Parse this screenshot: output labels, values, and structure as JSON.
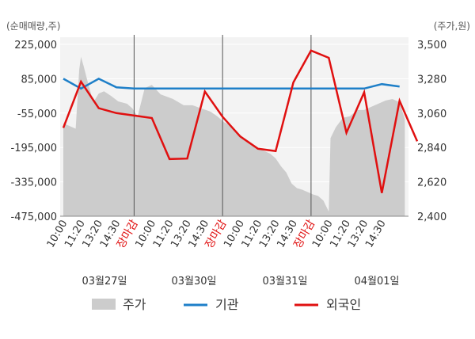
{
  "chart_data": {
    "type": "line",
    "left_axis": {
      "unit_label": "(순매매량,주)",
      "ticks": [
        225000,
        85000,
        -55000,
        -195000,
        -335000,
        -475000
      ],
      "tick_labels": [
        "225,000",
        "85,000",
        "-55,000",
        "-195,000",
        "-335,000",
        "-475,000"
      ],
      "range": [
        -475000,
        225000
      ]
    },
    "right_axis": {
      "unit_label": "(주가,원)",
      "ticks": [
        3500,
        3280,
        3060,
        2840,
        2620,
        2400
      ],
      "tick_labels": [
        "3,500",
        "3,280",
        "3,060",
        "2,840",
        "2,620",
        "2,400"
      ],
      "range": [
        2400,
        3500
      ]
    },
    "x_tick_labels": [
      "10:00",
      "11:20",
      "13:20",
      "14:30",
      "장마감",
      "10:00",
      "11:20",
      "13:20",
      "14:30",
      "장마감",
      "10:00",
      "11:20",
      "13:20",
      "14:30",
      "장마감",
      "10:00",
      "11:20",
      "13:20",
      "14:30"
    ],
    "market_close_label": "장마감",
    "dates": [
      "03월27일",
      "03월30일",
      "03월31일",
      "04월01일"
    ],
    "legend": [
      "주가",
      "기관",
      "외국인"
    ],
    "colors": {
      "price": "#cccccc",
      "institution": "#1e7fc8",
      "foreign": "#e01010",
      "close_label": "#e01010",
      "divider": "#555555"
    },
    "series": [
      {
        "name": "기관",
        "points": [
          [
            0,
            85000
          ],
          [
            1,
            45000
          ],
          [
            2,
            85000
          ],
          [
            3,
            50000
          ],
          [
            4,
            45000
          ],
          [
            5,
            45000
          ],
          [
            6,
            45000
          ],
          [
            7,
            45000
          ],
          [
            8,
            45000
          ],
          [
            9,
            45000
          ],
          [
            10,
            45000
          ],
          [
            11,
            45000
          ],
          [
            12,
            45000
          ],
          [
            13,
            45000
          ],
          [
            14,
            45000
          ],
          [
            15,
            45000
          ],
          [
            16,
            45000
          ],
          [
            17,
            45000
          ],
          [
            18,
            63000
          ],
          [
            19,
            53000
          ]
        ]
      },
      {
        "name": "외국인",
        "points": [
          [
            0,
            -115000
          ],
          [
            1,
            73000
          ],
          [
            2,
            -35000
          ],
          [
            3,
            -55000
          ],
          [
            4,
            -65000
          ],
          [
            5,
            -75000
          ],
          [
            6,
            -242000
          ],
          [
            7,
            -240000
          ],
          [
            8,
            33000
          ],
          [
            9,
            -70000
          ],
          [
            10,
            -150000
          ],
          [
            11,
            -200000
          ],
          [
            12,
            -210000
          ],
          [
            13,
            70000
          ],
          [
            14,
            200000
          ],
          [
            15,
            170000
          ],
          [
            16,
            -135000
          ],
          [
            17,
            30000
          ],
          [
            18,
            -380000
          ],
          [
            19,
            -5000
          ],
          [
            20,
            -170000
          ]
        ]
      },
      {
        "name": "주가",
        "points": [
          [
            0,
            2995
          ],
          [
            0.7,
            2960
          ],
          [
            0.9,
            3340
          ],
          [
            1.0,
            3420
          ],
          [
            1.15,
            3360
          ],
          [
            1.4,
            3250
          ],
          [
            1.7,
            3130
          ],
          [
            2.0,
            3185
          ],
          [
            2.3,
            3200
          ],
          [
            2.7,
            3170
          ],
          [
            3.1,
            3135
          ],
          [
            3.6,
            3120
          ],
          [
            3.9,
            3090
          ],
          [
            4.2,
            3040
          ],
          [
            4.6,
            3220
          ],
          [
            5.0,
            3240
          ],
          [
            5.5,
            3180
          ],
          [
            6.2,
            3150
          ],
          [
            6.8,
            3110
          ],
          [
            7.3,
            3110
          ],
          [
            7.8,
            3090
          ],
          [
            8.3,
            3070
          ],
          [
            8.7,
            3040
          ],
          [
            9.1,
            3000
          ],
          [
            9.5,
            2980
          ],
          [
            9.8,
            2940
          ],
          [
            10.2,
            2900
          ],
          [
            10.6,
            2870
          ],
          [
            10.9,
            2840
          ],
          [
            11.3,
            2820
          ],
          [
            11.7,
            2800
          ],
          [
            12.0,
            2770
          ],
          [
            12.3,
            2720
          ],
          [
            12.6,
            2680
          ],
          [
            12.9,
            2610
          ],
          [
            13.2,
            2580
          ],
          [
            13.5,
            2570
          ],
          [
            13.8,
            2555
          ],
          [
            14.1,
            2540
          ],
          [
            14.4,
            2530
          ],
          [
            14.7,
            2500
          ],
          [
            15.0,
            2430
          ],
          [
            15.1,
            2900
          ],
          [
            15.4,
            2970
          ],
          [
            15.8,
            3030
          ],
          [
            16.2,
            3040
          ],
          [
            16.6,
            3080
          ],
          [
            17.0,
            3080
          ],
          [
            17.4,
            3100
          ],
          [
            17.8,
            3120
          ],
          [
            18.2,
            3140
          ],
          [
            18.6,
            3150
          ],
          [
            19.0,
            3130
          ],
          [
            19.3,
            3020
          ]
        ]
      }
    ]
  }
}
